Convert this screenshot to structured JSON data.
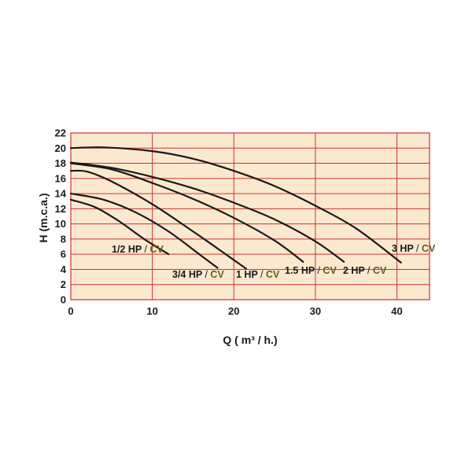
{
  "chart_data": {
    "type": "line",
    "title": "",
    "xlabel": "Q ( m³ / h.)",
    "ylabel": "H (m.c.a.)",
    "xlim": [
      0,
      44
    ],
    "ylim": [
      0,
      22
    ],
    "x_ticks": [
      0,
      10,
      20,
      30,
      40
    ],
    "y_ticks": [
      0,
      2,
      4,
      6,
      8,
      10,
      12,
      14,
      16,
      18,
      20,
      22
    ],
    "grid": true,
    "background_color": "#fbe9cf",
    "grid_color": "#cc3333",
    "line_color": "#1a1a1a",
    "series": [
      {
        "name": "1/2 HP / CV",
        "hp": "1/2 HP",
        "sep": "/",
        "cv": "CV",
        "x": [
          0,
          3,
          6,
          9,
          12
        ],
        "y": [
          13.2,
          12.2,
          10.3,
          8.0,
          6.0
        ]
      },
      {
        "name": "3/4 HP / CV",
        "hp": "3/4 HP",
        "sep": "/",
        "cv": "CV",
        "x": [
          0,
          4,
          8,
          12,
          16,
          18
        ],
        "y": [
          14.0,
          13.2,
          11.5,
          9.0,
          5.8,
          4.2
        ]
      },
      {
        "name": "1 HP / CV",
        "hp": "1 HP",
        "sep": "/",
        "cv": "CV",
        "x": [
          0,
          2,
          5,
          10,
          15,
          19,
          21.5
        ],
        "y": [
          17.0,
          16.9,
          15.6,
          12.6,
          9.0,
          6.0,
          4.1
        ]
      },
      {
        "name": "1.5 HP / CV",
        "hp": "1.5 HP",
        "sep": "/",
        "cv": "CV",
        "x": [
          0,
          5,
          10,
          15,
          20,
          25,
          28.5
        ],
        "y": [
          18.0,
          17.2,
          15.4,
          13.3,
          10.8,
          7.8,
          5.0
        ]
      },
      {
        "name": "2 HP / CV",
        "hp": "2 HP",
        "sep": "/",
        "cv": "CV",
        "x": [
          0,
          5,
          10,
          15,
          20,
          25,
          30,
          33.5
        ],
        "y": [
          18.1,
          17.4,
          16.2,
          14.7,
          12.8,
          10.6,
          7.7,
          5.0
        ]
      },
      {
        "name": "3 HP / CV",
        "hp": "3 HP",
        "sep": "/",
        "cv": "CV",
        "x": [
          0,
          4,
          10,
          15,
          20,
          25,
          30,
          35,
          40.5
        ],
        "y": [
          20.0,
          20.1,
          19.6,
          18.6,
          17.0,
          15.0,
          12.4,
          9.4,
          4.9
        ]
      }
    ]
  }
}
